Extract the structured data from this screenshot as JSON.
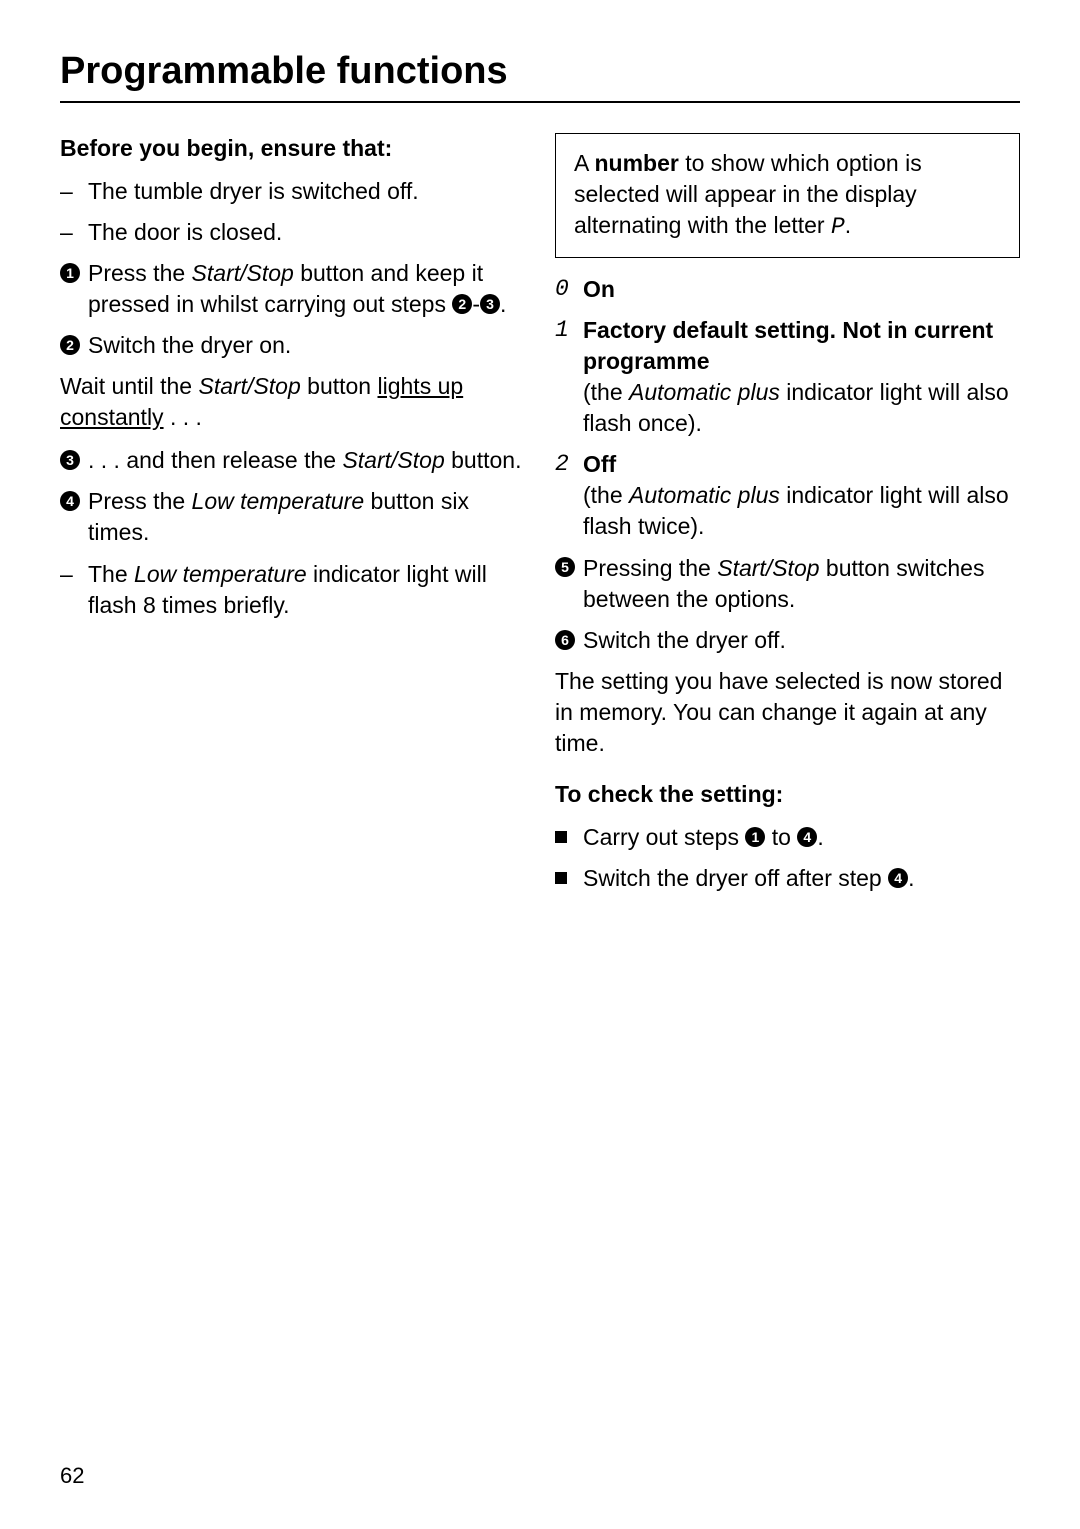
{
  "page_title": "Programmable functions",
  "page_number": "62",
  "left": {
    "heading": "Before you begin, ensure that:",
    "pre1": "The tumble dryer is switched off.",
    "pre2": "The door is closed.",
    "step1_a": "Press the ",
    "step1_b": "Start/Stop",
    "step1_c": " button and keep it pressed in whilst carrying out steps ",
    "step1_d": "-",
    "step1_e": ".",
    "step2": "Switch the dryer on.",
    "wait_a": "Wait until the ",
    "wait_b": "Start/Stop",
    "wait_c": " button ",
    "wait_d": "lights up constantly",
    "wait_e": " . . .",
    "step3_a": ". . . and then release the ",
    "step3_b": "Start/Stop",
    "step3_c": " button.",
    "step4_a": "Press the ",
    "step4_b": "Low temperature",
    "step4_c": " button six times.",
    "note_a": "The ",
    "note_b": "Low temperature",
    "note_c": " indicator light will flash 8 times briefly."
  },
  "right": {
    "box_a": "A ",
    "box_b": "number",
    "box_c": " to show which option is selected will appear in the display alternating with the letter ",
    "box_d": "P",
    "box_e": ".",
    "opt0_marker": "0",
    "opt0_label": "On",
    "opt1_marker": "1",
    "opt1_bold": "Factory default setting. Not in current programme",
    "opt1_a": "(the ",
    "opt1_b": "Automatic plus",
    "opt1_c": " indicator light will also flash once).",
    "opt2_marker": "2",
    "opt2_label": "Off",
    "opt2_a": "(the ",
    "opt2_b": "Automatic plus",
    "opt2_c": " indicator light will also flash twice).",
    "step5_a": "Pressing the ",
    "step5_b": "Start/Stop",
    "step5_c": " button switches between the options.",
    "step6": "Switch the dryer off.",
    "stored": "The setting you have selected is now stored in memory. You can change it again at any time.",
    "check_heading": "To check the setting:",
    "check1_a": "Carry out steps ",
    "check1_b": " to ",
    "check1_c": ".",
    "check2_a": "Switch the dryer off after step ",
    "check2_b": "."
  },
  "circled": {
    "n1": "1",
    "n2": "2",
    "n3": "3",
    "n4": "4",
    "n5": "5",
    "n6": "6"
  }
}
